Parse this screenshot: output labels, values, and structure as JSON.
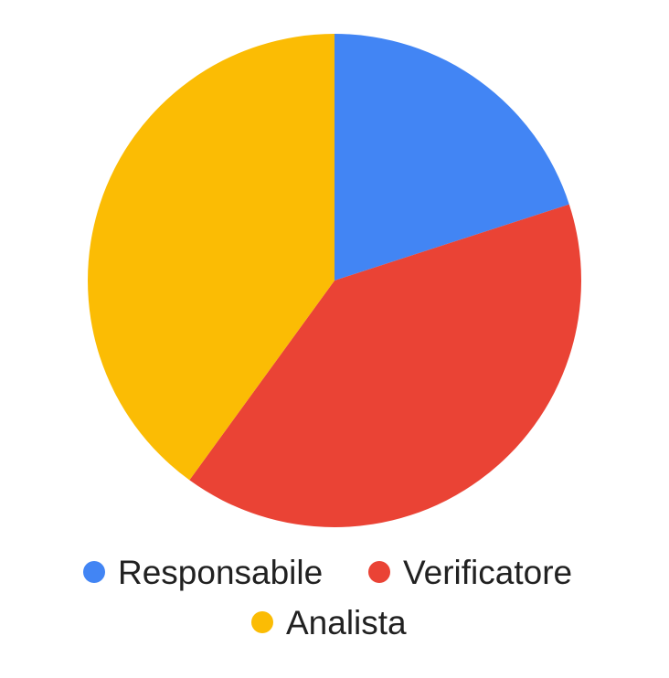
{
  "chart_data": {
    "type": "pie",
    "title": "",
    "slices": [
      {
        "label": "Responsabile",
        "value": 20,
        "color": "#4285F4"
      },
      {
        "label": "Verificatore",
        "value": 40,
        "color": "#EA4335"
      },
      {
        "label": "Analista",
        "value": 40,
        "color": "#FBBC04"
      }
    ],
    "start_angle_deg": 0,
    "direction": "clockwise",
    "legend_position": "bottom"
  }
}
